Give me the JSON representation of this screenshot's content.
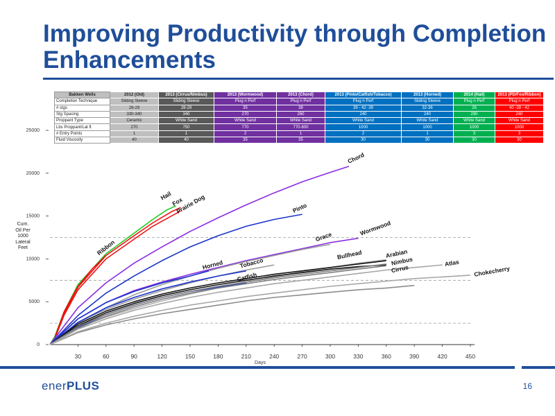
{
  "slide": {
    "title_line1": "Improving Productivity through Completion",
    "title_line2": "Enhancements",
    "page_number": "16",
    "logo_part1": "ener",
    "logo_part2": "PLUS",
    "accent_color": "#1f4e99"
  },
  "table": {
    "header": [
      "Bakken Wells",
      "2012 (Old)",
      "2013 (Cirrus/Nimbus)",
      "2013 (Wormwood)",
      "2013 (Chord)",
      "2013 (Pinto/Catfish/Tobacco)",
      "2013 (Horned)",
      "2014 (Hail)",
      "2013 (PD/Fox/Ribbon)"
    ],
    "column_colors": [
      "#bfbfbf",
      "#595959",
      "#7030a0",
      "#7030a0",
      "#0070c0",
      "#0070c0",
      "#00b050",
      "#ff0000"
    ],
    "rows": [
      {
        "label": "Completion Technique",
        "values": [
          "Sliding Sleeve",
          "Sliding Sleeve",
          "Plug n Perf",
          "Plug n Perf",
          "Plug n Perf",
          "Sliding Sleeve",
          "Plug n Perf",
          "Plug n Perf"
        ]
      },
      {
        "label": "# stgs",
        "values": [
          "28-29",
          "28-29",
          "35",
          "38",
          "39 - 42 -39",
          "32-36",
          "26",
          "40 -39 - 42"
        ]
      },
      {
        "label": "Stg Spacing",
        "values": [
          "330-340",
          "340",
          "270",
          "260",
          "240",
          "240",
          "290",
          "240"
        ]
      },
      {
        "label": "Proppant Type",
        "values": [
          "Ceramic",
          "White Sand",
          "White Sand",
          "White Sand",
          "White Sand",
          "White Sand",
          "White Sand",
          "White Sand"
        ]
      },
      {
        "label": "Lbs Proppant/Lat ft",
        "values": [
          "270",
          "750",
          "770",
          "770-800",
          "1000",
          "1000",
          "1000",
          "1000"
        ]
      },
      {
        "label": "# Entry Points",
        "values": [
          "1",
          "1",
          "2",
          "1",
          "2",
          "1",
          "3",
          "3"
        ]
      },
      {
        "label": "Fluid Viscosity",
        "values": [
          "40",
          "40",
          "35",
          "35",
          "30",
          "30",
          "30",
          "30"
        ]
      }
    ]
  },
  "chart_data": {
    "type": "line",
    "xlabel": "Days",
    "ylabel": "Cum. Oil Per 1000 Lateral Feet",
    "xlim": [
      0,
      450
    ],
    "ylim": [
      0,
      25000
    ],
    "x_ticks": [
      30,
      60,
      90,
      120,
      150,
      180,
      210,
      240,
      270,
      300,
      330,
      360,
      390,
      420,
      450
    ],
    "y_ticks": [
      0,
      5000,
      10000,
      15000,
      20000,
      25000
    ],
    "y_tick_labels": [
      "0",
      "5000",
      "10000",
      "15000",
      "20000",
      "25000"
    ],
    "gridlines": [
      2500,
      7500,
      12500
    ],
    "series": [
      {
        "name": "Hail",
        "color": "#22cc22",
        "x": [
          0,
          5,
          15,
          30,
          60,
          90,
          110,
          125,
          135
        ],
        "y": [
          0,
          900,
          3800,
          7000,
          10600,
          13000,
          14600,
          15700,
          16200
        ]
      },
      {
        "name": "Fox",
        "color": "#ee1111",
        "x": [
          0,
          5,
          15,
          30,
          60,
          90,
          110,
          130,
          140
        ],
        "y": [
          0,
          700,
          3600,
          6700,
          10400,
          12700,
          14200,
          15500,
          16000
        ]
      },
      {
        "name": "Prairie Dog",
        "color": "#ee1111",
        "x": [
          0,
          5,
          15,
          30,
          60,
          90,
          110,
          130,
          140
        ],
        "y": [
          0,
          600,
          3400,
          6400,
          10000,
          12300,
          13800,
          15000,
          15600
        ]
      },
      {
        "name": "Ribbon",
        "color": "#ee1111",
        "x": [
          0,
          5,
          15,
          30,
          45,
          60
        ],
        "y": [
          0,
          700,
          3800,
          6800,
          8800,
          10400
        ]
      },
      {
        "name": "Chord",
        "color": "#8a2be2",
        "x": [
          0,
          30,
          60,
          90,
          120,
          150,
          180,
          210,
          240,
          270,
          300,
          320
        ],
        "y": [
          0,
          4300,
          7200,
          9500,
          11400,
          13200,
          14800,
          16300,
          17700,
          19000,
          20100,
          20800
        ]
      },
      {
        "name": "Pinto",
        "color": "#1a33cc",
        "x": [
          0,
          30,
          60,
          90,
          120,
          150,
          180,
          210,
          240,
          270
        ],
        "y": [
          0,
          3400,
          6000,
          8000,
          9800,
          11400,
          12700,
          13800,
          14600,
          15200
        ]
      },
      {
        "name": "Wormwood",
        "color": "#8a2be2",
        "x": [
          0,
          30,
          60,
          90,
          120,
          150,
          180,
          210,
          240,
          270,
          300,
          330
        ],
        "y": [
          0,
          3000,
          4900,
          6300,
          7300,
          8200,
          9000,
          9800,
          10500,
          11200,
          11900,
          12400
        ]
      },
      {
        "name": "Grace",
        "color": "#9a9a9a",
        "x": [
          0,
          30,
          60,
          90,
          120,
          150,
          180,
          210,
          240,
          270,
          300
        ],
        "y": [
          0,
          2500,
          4300,
          5800,
          7000,
          8000,
          8900,
          9700,
          10400,
          11100,
          11700
        ]
      },
      {
        "name": "Horned",
        "color": "#1a33cc",
        "x": [
          0,
          30,
          60,
          90,
          120,
          150,
          170
        ],
        "y": [
          0,
          3000,
          4900,
          6200,
          7200,
          8000,
          8600
        ]
      },
      {
        "name": "Tobacco",
        "color": "#1a33cc",
        "x": [
          0,
          30,
          60,
          90,
          120,
          150,
          180,
          210
        ],
        "y": [
          0,
          2600,
          4300,
          5500,
          6500,
          7300,
          8000,
          8600
        ]
      },
      {
        "name": "Catfish",
        "color": "#1a33cc",
        "x": [
          0,
          30,
          60,
          90,
          120,
          150,
          180,
          210
        ],
        "y": [
          0,
          2000,
          3500,
          4600,
          5500,
          6200,
          6700,
          7200
        ]
      },
      {
        "name": "Bullhead",
        "color": "#111111",
        "x": [
          0,
          30,
          60,
          90,
          120,
          150,
          180,
          210,
          240,
          270,
          300,
          330,
          360
        ],
        "y": [
          0,
          2200,
          3700,
          4800,
          5700,
          6400,
          7000,
          7500,
          8000,
          8400,
          8800,
          9100,
          9300
        ]
      },
      {
        "name": "Arabian",
        "color": "#111111",
        "x": [
          0,
          30,
          60,
          90,
          120,
          150,
          180,
          210,
          240,
          270,
          300,
          330,
          360
        ],
        "y": [
          0,
          2400,
          3900,
          5000,
          5900,
          6600,
          7200,
          7700,
          8200,
          8600,
          9000,
          9400,
          9800
        ]
      },
      {
        "name": "Nimbus",
        "color": "#7f7f7f",
        "x": [
          0,
          30,
          60,
          90,
          120,
          150,
          180,
          210,
          240,
          270,
          300,
          330,
          360
        ],
        "y": [
          0,
          2100,
          3500,
          4600,
          5500,
          6200,
          6800,
          7300,
          7800,
          8200,
          8600,
          9000,
          9400
        ]
      },
      {
        "name": "Cirrus",
        "color": "#7f7f7f",
        "x": [
          0,
          30,
          60,
          90,
          120,
          150,
          180,
          210,
          240,
          270,
          300,
          330,
          360
        ],
        "y": [
          0,
          1900,
          3300,
          4400,
          5300,
          6000,
          6600,
          7100,
          7600,
          8000,
          8400,
          8800,
          9200
        ]
      },
      {
        "name": "Atlas",
        "color": "#a6a6a6",
        "x": [
          0,
          30,
          60,
          90,
          120,
          150,
          180,
          210,
          240,
          270,
          300,
          330,
          360,
          390,
          420
        ],
        "y": [
          0,
          1800,
          3000,
          4000,
          4800,
          5500,
          6100,
          6600,
          7100,
          7500,
          7900,
          8300,
          8700,
          9000,
          9300
        ]
      },
      {
        "name": "Chokecherry",
        "color": "#a6a6a6",
        "x": [
          0,
          30,
          60,
          90,
          120,
          150,
          180,
          210,
          240,
          270,
          300,
          330,
          360,
          390,
          420,
          450
        ],
        "y": [
          0,
          1500,
          2500,
          3300,
          4000,
          4600,
          5100,
          5600,
          6000,
          6400,
          6800,
          7100,
          7400,
          7700,
          7900,
          8100
        ]
      },
      {
        "name": "",
        "color": "#8c8c8c",
        "x": [
          0,
          30,
          60,
          90,
          120,
          150,
          180,
          210,
          240,
          270,
          300,
          330,
          360,
          390
        ],
        "y": [
          0,
          1400,
          2300,
          3000,
          3600,
          4100,
          4600,
          5100,
          5500,
          5800,
          6100,
          6400,
          6600,
          6900
        ]
      },
      {
        "name": "",
        "color": "#b0b0b0",
        "x": [
          0,
          30,
          60,
          90,
          120,
          150,
          180,
          210,
          240,
          270,
          300,
          330,
          360
        ],
        "y": [
          0,
          2000,
          3200,
          4200,
          5100,
          5900,
          6600,
          7300,
          7900,
          8500,
          9000,
          9500,
          9900
        ]
      },
      {
        "name": "",
        "color": "#9a9a9a",
        "x": [
          0,
          30,
          60,
          90,
          120,
          150,
          180,
          210,
          240
        ],
        "y": [
          0,
          2600,
          4100,
          5300,
          6300,
          7200,
          8000,
          8700,
          9300
        ]
      }
    ]
  }
}
